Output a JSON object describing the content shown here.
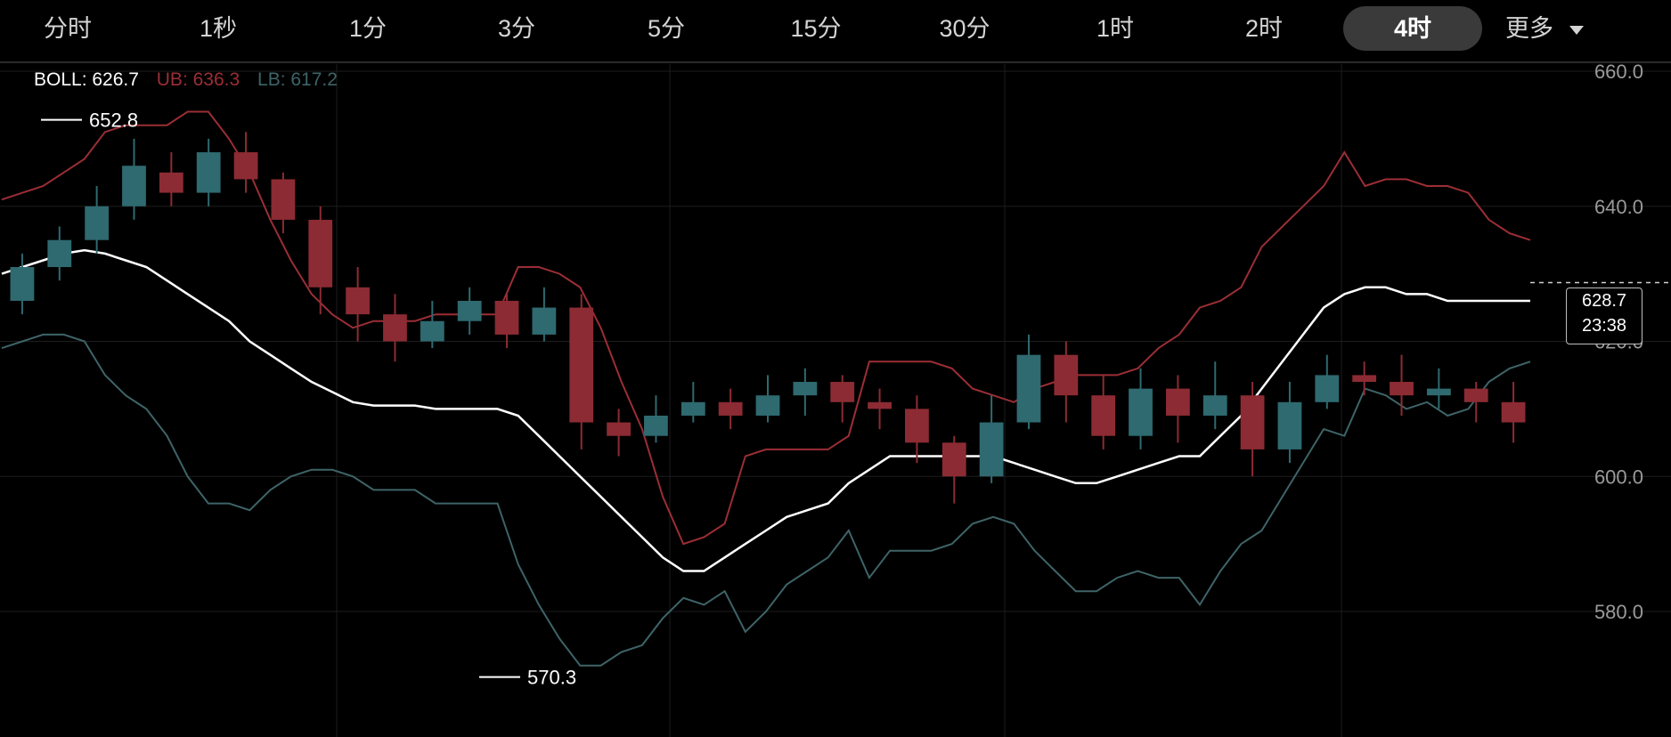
{
  "tabs": [
    {
      "label": "分时"
    },
    {
      "label": "1秒"
    },
    {
      "label": "1分"
    },
    {
      "label": "3分"
    },
    {
      "label": "5分"
    },
    {
      "label": "15分"
    },
    {
      "label": "30分"
    },
    {
      "label": "1时"
    },
    {
      "label": "2时"
    },
    {
      "label": "4时",
      "active": true
    }
  ],
  "more_label": "更多",
  "legend": {
    "boll": "BOLL: 626.7",
    "ub": "UB: 636.3",
    "lb": "LB: 617.2",
    "colors": {
      "boll": "#ffffff",
      "ub": "#9b2e35",
      "lb": "#3e6468"
    }
  },
  "annotations": {
    "high": "652.8",
    "low": "570.3"
  },
  "current": {
    "price": "628.7",
    "countdown": "23:38"
  },
  "colors": {
    "up": "#2e6a70",
    "down": "#8c2b33",
    "mid": "#ffffff",
    "grid": "#1d1d1d",
    "axis_text": "#9a9a9a"
  },
  "chart_data": {
    "type": "candlestick",
    "y_ticks": [
      "660.0",
      "640.0",
      "620.0",
      "600.0",
      "580.0"
    ],
    "ylim": [
      565,
      665
    ],
    "indicator": "BOLL",
    "boll_mid": [
      630,
      631,
      632,
      633,
      633.5,
      633,
      632,
      631,
      629,
      627,
      625,
      623,
      620,
      618,
      616,
      614,
      612.5,
      611,
      610.5,
      610.5,
      610.5,
      610,
      610,
      610,
      610,
      609,
      606,
      603,
      600,
      597,
      594,
      591,
      588,
      586,
      586,
      588,
      590,
      592,
      594,
      595,
      596,
      599,
      601,
      603,
      603,
      603,
      603,
      603,
      603,
      602,
      601,
      600,
      599,
      599,
      600,
      601,
      602,
      603,
      603,
      606,
      609,
      613,
      617,
      621,
      625,
      627,
      628,
      628,
      627,
      627,
      626
    ],
    "boll_ub": [
      641,
      642,
      643,
      645,
      647,
      651,
      652,
      652,
      652,
      654,
      654,
      650,
      645,
      638,
      632,
      627,
      624,
      622,
      623,
      623,
      623,
      624,
      624,
      624,
      624,
      631,
      631,
      630,
      628,
      622,
      614,
      607,
      597,
      590,
      591,
      593,
      603,
      604,
      604,
      604,
      604,
      606,
      617,
      617,
      617,
      617,
      616,
      613,
      612,
      611,
      613,
      614,
      615,
      615,
      615,
      616,
      619,
      621,
      625,
      626,
      628,
      634,
      637,
      640,
      643,
      648,
      643,
      644,
      644,
      643,
      643,
      642,
      638,
      636,
      635
    ],
    "candles": [
      [
        626,
        631,
        624,
        633
      ],
      [
        631,
        635,
        629,
        637
      ],
      [
        635,
        640,
        633,
        643
      ],
      [
        640,
        646,
        638,
        650
      ],
      [
        645,
        642,
        640,
        648
      ],
      [
        642,
        648,
        640,
        650
      ],
      [
        648,
        644,
        642,
        651
      ],
      [
        644,
        638,
        636,
        645
      ],
      [
        638,
        628,
        624,
        640
      ],
      [
        628,
        624,
        620,
        631
      ],
      [
        624,
        620,
        617,
        627
      ],
      [
        620,
        623,
        619,
        626
      ],
      [
        623,
        626,
        621,
        628
      ],
      [
        626,
        621,
        619,
        627
      ],
      [
        621,
        625,
        620,
        628
      ],
      [
        625,
        608,
        604,
        627
      ],
      [
        608,
        606,
        603,
        610
      ],
      [
        606,
        609,
        605,
        612
      ],
      [
        609,
        611,
        608,
        614
      ],
      [
        611,
        609,
        607,
        613
      ],
      [
        609,
        612,
        608,
        615
      ],
      [
        612,
        614,
        609,
        616
      ],
      [
        614,
        611,
        608,
        615
      ],
      [
        611,
        610,
        607,
        613
      ],
      [
        610,
        605,
        602,
        612
      ],
      [
        605,
        600,
        596,
        606
      ],
      [
        600,
        608,
        599,
        612
      ],
      [
        608,
        618,
        607,
        621
      ],
      [
        618,
        612,
        608,
        620
      ],
      [
        612,
        606,
        604,
        615
      ],
      [
        606,
        613,
        604,
        616
      ],
      [
        613,
        609,
        605,
        615
      ],
      [
        609,
        612,
        607,
        617
      ],
      [
        612,
        604,
        600,
        614
      ],
      [
        604,
        611,
        602,
        614
      ],
      [
        611,
        615,
        610,
        618
      ],
      [
        615,
        614,
        612,
        617
      ],
      [
        614,
        612,
        609,
        618
      ],
      [
        612,
        613,
        610,
        616
      ],
      [
        613,
        611,
        608,
        614
      ],
      [
        611,
        608,
        605,
        614
      ]
    ],
    "high": 652.8,
    "low": 570.3,
    "last": 628.7
  }
}
